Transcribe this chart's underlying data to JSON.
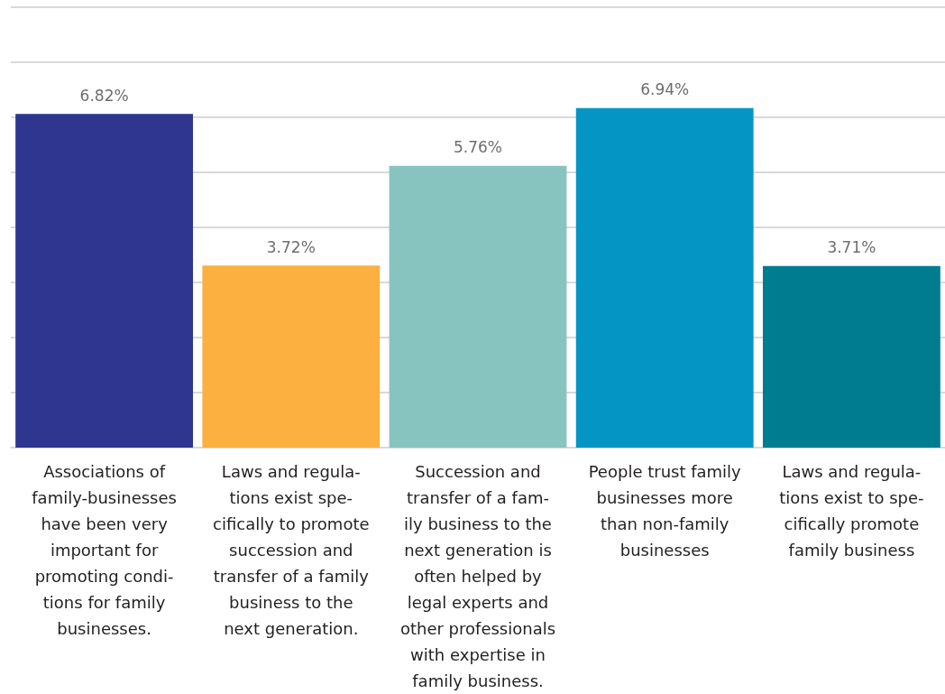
{
  "chart_data": {
    "type": "bar",
    "categories": [
      "Associations of\nfamily-businesses\nhave been very\nimportant for\npromoting condi-\ntions for family\nbusinesses.",
      "Laws and regula-\ntions exist spe-\ncifically to promote\nsuccession and\ntransfer of a family\nbusiness to the\nnext generation.",
      "Succession and\ntransfer of a fam-\nily business to the\nnext generation is\noften helped by\nlegal experts and\nother professionals\nwith expertise in\nfamily business.",
      "People trust family\nbusinesses more\nthan non-family\nbusinesses",
      "Laws and regula-\ntions exist to spe-\ncifically promote\nfamily business"
    ],
    "values": [
      6.82,
      3.72,
      5.76,
      6.94,
      3.71
    ],
    "colors": [
      "#2e3690",
      "#fbb040",
      "#88c4bf",
      "#0595c4",
      "#007c91"
    ],
    "value_labels": [
      "6.82%",
      "3.72%",
      "5.76%",
      "6.94%",
      "3.71%"
    ],
    "ylim": [
      0,
      9
    ],
    "yticks": [
      {
        "value": 0,
        "label": null
      },
      {
        "value": 1.125,
        "label": null
      },
      {
        "value": 2.25,
        "label": null
      },
      {
        "value": 3.375,
        "label": null
      },
      {
        "value": 4.5,
        "label": null
      },
      {
        "value": 5.625,
        "label": null
      },
      {
        "value": 6.75,
        "label": null
      },
      {
        "value": 7.875,
        "label": null
      },
      {
        "value": 9,
        "label": null
      }
    ],
    "tick_labels": "x",
    "grid": "y"
  }
}
